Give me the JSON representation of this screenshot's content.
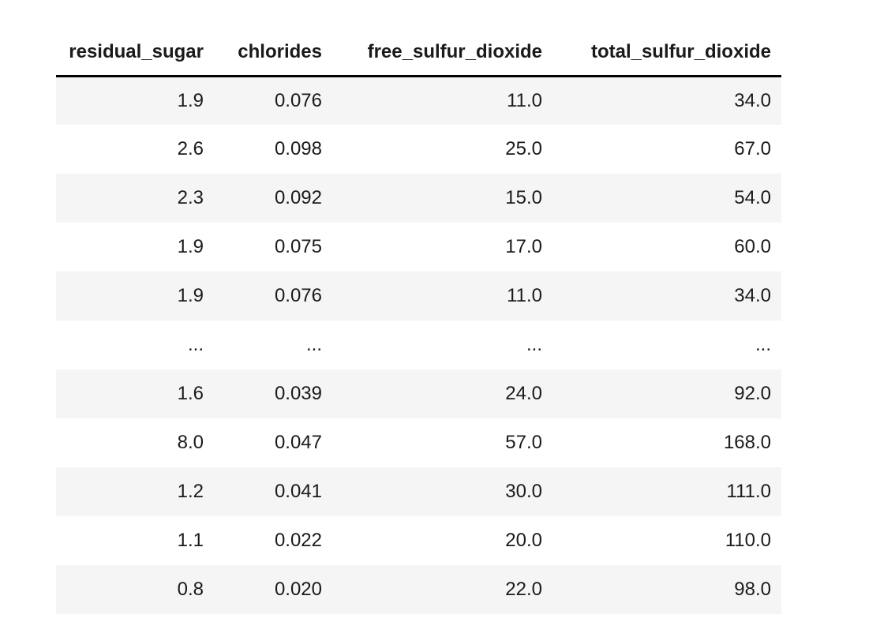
{
  "chart_data": {
    "type": "table",
    "columns": [
      "residual_sugar",
      "chlorides",
      "free_sulfur_dioxide",
      "total_sulfur_dioxide"
    ],
    "rows": [
      [
        "1.9",
        "0.076",
        "11.0",
        "34.0"
      ],
      [
        "2.6",
        "0.098",
        "25.0",
        "67.0"
      ],
      [
        "2.3",
        "0.092",
        "15.0",
        "54.0"
      ],
      [
        "1.9",
        "0.075",
        "17.0",
        "60.0"
      ],
      [
        "1.9",
        "0.076",
        "11.0",
        "34.0"
      ],
      [
        "...",
        "...",
        "...",
        "..."
      ],
      [
        "1.6",
        "0.039",
        "24.0",
        "92.0"
      ],
      [
        "8.0",
        "0.047",
        "57.0",
        "168.0"
      ],
      [
        "1.2",
        "0.041",
        "30.0",
        "111.0"
      ],
      [
        "1.1",
        "0.022",
        "20.0",
        "110.0"
      ],
      [
        "0.8",
        "0.020",
        "22.0",
        "98.0"
      ]
    ],
    "layout": {
      "striped_rows": true,
      "stripe_pattern": "odd-rows-shaded",
      "header_rule": "thick-black-bottom-border",
      "value_alignment": "right",
      "grid": false
    }
  },
  "colors": {
    "stripe": "#f5f5f5",
    "rule": "#000000",
    "text": "#1a1a1a",
    "background": "#ffffff"
  }
}
